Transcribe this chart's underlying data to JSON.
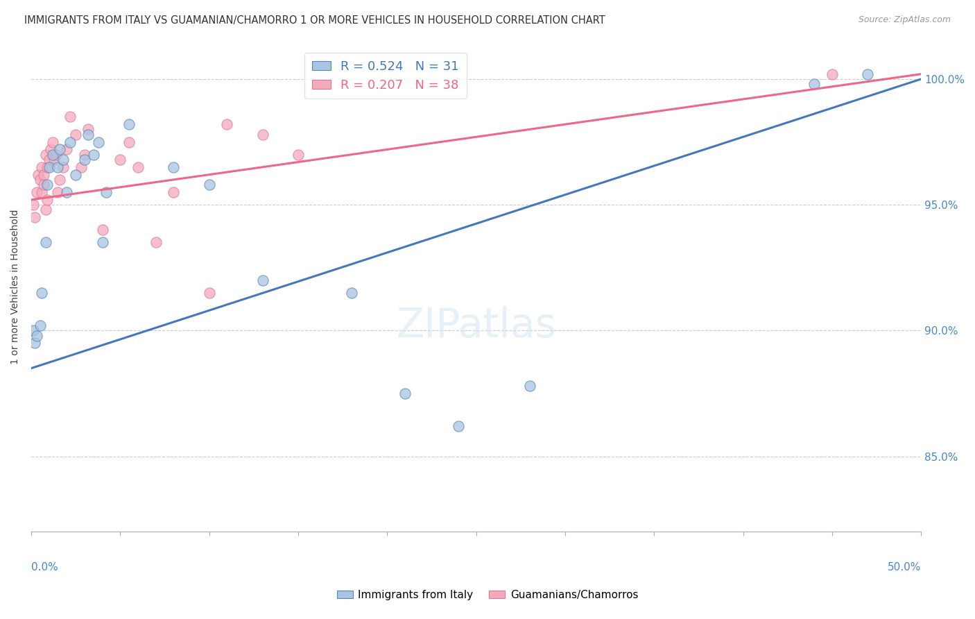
{
  "title": "IMMIGRANTS FROM ITALY VS GUAMANIAN/CHAMORRO 1 OR MORE VEHICLES IN HOUSEHOLD CORRELATION CHART",
  "source": "Source: ZipAtlas.com",
  "ylabel": "1 or more Vehicles in Household",
  "xmin": 0.0,
  "xmax": 0.5,
  "ymin": 82.0,
  "ymax": 101.5,
  "series1_name": "Immigrants from Italy",
  "series1_R": 0.524,
  "series1_N": 31,
  "series1_color": "#A8C4E0",
  "series1_edge_color": "#5588BB",
  "series1_trend_color": "#4477BB",
  "series2_name": "Guamanians/Chamorros",
  "series2_R": 0.207,
  "series2_N": 38,
  "series2_color": "#F5AABC",
  "series2_edge_color": "#DD7799",
  "series2_trend_color": "#EE6688",
  "italy_x": [
    0.001,
    0.002,
    0.003,
    0.005,
    0.006,
    0.008,
    0.009,
    0.01,
    0.012,
    0.015,
    0.016,
    0.018,
    0.02,
    0.022,
    0.025,
    0.03,
    0.032,
    0.035,
    0.038,
    0.04,
    0.042,
    0.055,
    0.08,
    0.1,
    0.13,
    0.18,
    0.21,
    0.24,
    0.28,
    0.44,
    0.47
  ],
  "italy_y": [
    90.0,
    89.5,
    89.8,
    90.2,
    91.5,
    93.5,
    95.8,
    96.5,
    97.0,
    96.5,
    97.2,
    96.8,
    95.5,
    97.5,
    96.2,
    96.8,
    97.8,
    97.0,
    97.5,
    93.5,
    95.5,
    98.2,
    96.5,
    95.8,
    92.0,
    91.5,
    87.5,
    86.2,
    87.8,
    99.8,
    100.2
  ],
  "guam_x": [
    0.001,
    0.002,
    0.003,
    0.004,
    0.005,
    0.006,
    0.006,
    0.007,
    0.007,
    0.008,
    0.008,
    0.009,
    0.009,
    0.01,
    0.011,
    0.012,
    0.013,
    0.014,
    0.015,
    0.016,
    0.018,
    0.02,
    0.022,
    0.025,
    0.028,
    0.03,
    0.032,
    0.04,
    0.05,
    0.055,
    0.06,
    0.07,
    0.08,
    0.1,
    0.11,
    0.13,
    0.15,
    0.45
  ],
  "guam_y": [
    95.0,
    94.5,
    95.5,
    96.2,
    96.0,
    95.5,
    96.5,
    96.2,
    95.8,
    94.8,
    97.0,
    96.5,
    95.2,
    96.8,
    97.2,
    97.5,
    96.8,
    97.0,
    95.5,
    96.0,
    96.5,
    97.2,
    98.5,
    97.8,
    96.5,
    97.0,
    98.0,
    94.0,
    96.8,
    97.5,
    96.5,
    93.5,
    95.5,
    91.5,
    98.2,
    97.8,
    97.0,
    100.2
  ],
  "italy_trend_x0": 0.0,
  "italy_trend_y0": 88.5,
  "italy_trend_x1": 0.5,
  "italy_trend_y1": 100.0,
  "guam_trend_x0": 0.0,
  "guam_trend_y0": 95.2,
  "guam_trend_x1": 0.5,
  "guam_trend_y1": 100.2,
  "ytick_positions": [
    85.0,
    90.0,
    95.0,
    100.0
  ],
  "ytick_labels": [
    "85.0%",
    "90.0%",
    "95.0%",
    "100.0%"
  ],
  "grid_color": "#CCCCCC",
  "background_color": "#FFFFFF"
}
